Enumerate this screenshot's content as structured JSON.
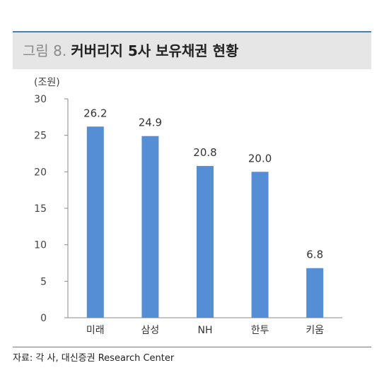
{
  "header": {
    "figure_label": "그림 8.",
    "title": "커버리지 5사 보유채권 현황"
  },
  "unit_label": "(조원)",
  "source_note": "자료: 각 사, 대신증권 Research Center",
  "colors": {
    "bar": "#558ed5",
    "accent_rule": "#4a7fb5",
    "title_bg": "#e6e6e6"
  },
  "chart_data": {
    "type": "bar",
    "categories": [
      "미래",
      "삼성",
      "NH",
      "한투",
      "키움"
    ],
    "values": [
      26.2,
      24.9,
      20.8,
      20.0,
      6.8
    ],
    "value_labels": [
      "26.2",
      "24.9",
      "20.8",
      "20.0",
      "6.8"
    ],
    "yticks": [
      0,
      5,
      10,
      15,
      20,
      25,
      30
    ],
    "ylim": [
      0,
      30
    ],
    "ylabel": "(조원)",
    "grid": false,
    "legend": "none"
  }
}
